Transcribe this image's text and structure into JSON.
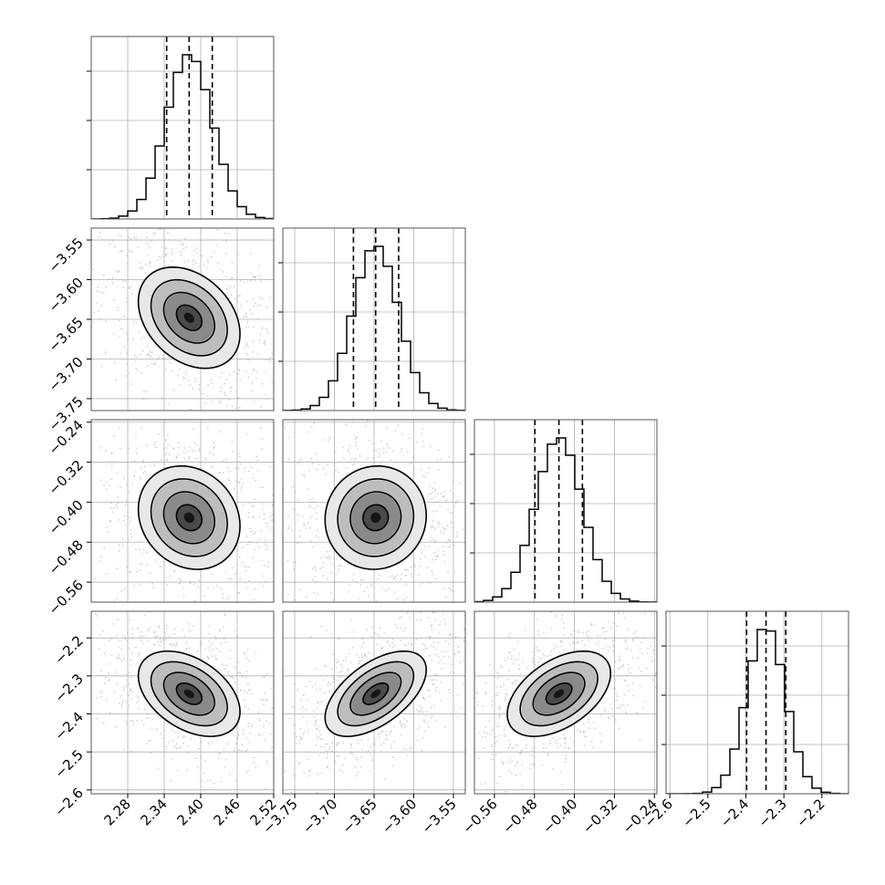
{
  "chart_data": {
    "type": "corner",
    "title": "",
    "parameters": [
      {
        "name": "",
        "range": [
          2.22,
          2.52
        ],
        "ticks": [
          2.28,
          2.34,
          2.4,
          2.46,
          2.52
        ],
        "tick_labels": [
          "2.28",
          "2.34",
          "2.40",
          "2.46",
          "2.52"
        ],
        "quantiles": [
          2.344,
          2.381,
          2.419
        ],
        "mean": 2.381,
        "sd": 0.038
      },
      {
        "name": "",
        "range": [
          -3.765,
          -3.535
        ],
        "ticks": [
          -3.75,
          -3.7,
          -3.65,
          -3.6,
          -3.55
        ],
        "tick_labels": [
          "−3.75",
          "−3.70",
          "−3.65",
          "−3.60",
          "−3.55"
        ],
        "quantiles": [
          -3.676,
          -3.648,
          -3.619
        ],
        "mean": -3.648,
        "sd": 0.029
      },
      {
        "name": "",
        "range": [
          -0.6,
          -0.235
        ],
        "ticks": [
          -0.56,
          -0.48,
          -0.4,
          -0.32,
          -0.24
        ],
        "tick_labels": [
          "−0.56",
          "−0.48",
          "−0.40",
          "−0.32",
          "−0.24"
        ],
        "quantiles": [
          -0.479,
          -0.431,
          -0.384
        ],
        "mean": -0.431,
        "sd": 0.047
      },
      {
        "name": "",
        "range": [
          -2.61,
          -2.13
        ],
        "ticks": [
          -2.6,
          -2.5,
          -2.4,
          -2.3,
          -2.2
        ],
        "tick_labels": [
          "−2.6",
          "−2.5",
          "−2.4",
          "−2.3",
          "−2.2"
        ],
        "quantiles": [
          -2.398,
          -2.347,
          -2.295
        ],
        "mean": -2.347,
        "sd": 0.051
      }
    ],
    "correlations": [
      {
        "pair": [
          1,
          0
        ],
        "rho": -0.32
      },
      {
        "pair": [
          2,
          0
        ],
        "rho": -0.16
      },
      {
        "pair": [
          2,
          1
        ],
        "rho": 0.04
      },
      {
        "pair": [
          3,
          0
        ],
        "rho": -0.42
      },
      {
        "pair": [
          3,
          1
        ],
        "rho": 0.56
      },
      {
        "pair": [
          3,
          2
        ],
        "rho": 0.48
      }
    ],
    "contour_levels_sigma": [
      0.5,
      1.0,
      1.5,
      2.0
    ],
    "histogram_bins": 20,
    "quantile_lines": "dashed",
    "grid": true,
    "colors": {
      "line": "#000000",
      "scatter": "#b0b0b0",
      "grid": "#b0b0b0",
      "density_dark": "#000000"
    }
  }
}
